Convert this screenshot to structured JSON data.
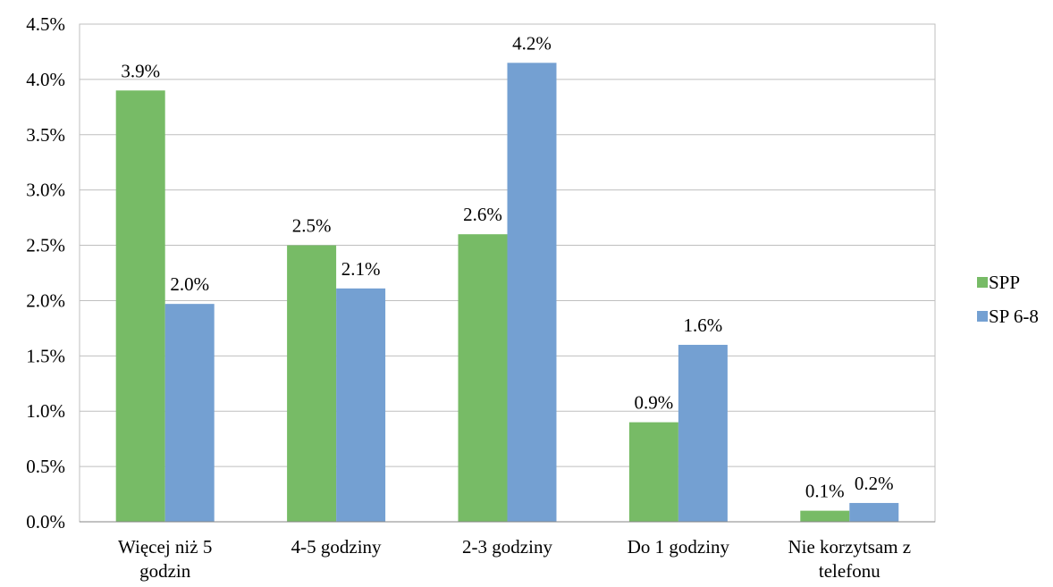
{
  "chart_data": {
    "type": "bar",
    "title": "",
    "xlabel": "",
    "ylabel": "",
    "categories": [
      [
        "Więcej niż 5",
        "godzin"
      ],
      [
        "4-5 godziny"
      ],
      [
        "2-3 godziny"
      ],
      [
        "Do 1 godziny"
      ],
      [
        "Nie korzytsam z",
        "telefonu"
      ]
    ],
    "series": [
      {
        "name": "SPP",
        "color": "#77BB66",
        "values": [
          3.9,
          2.5,
          2.6,
          0.9,
          0.1
        ],
        "labels": [
          "3.9%",
          "2.5%",
          "2.6%",
          "0.9%",
          "0.1%"
        ]
      },
      {
        "name": "SP 6-8",
        "color": "#74A0D2",
        "values": [
          1.97,
          2.11,
          4.15,
          1.6,
          0.17
        ],
        "labels": [
          "2.0%",
          "2.1%",
          "4.2%",
          "1.6%",
          "0.2%"
        ]
      }
    ],
    "ylim": [
      0,
      4.5
    ],
    "yticks": [
      "0.0%",
      "0.5%",
      "1.0%",
      "1.5%",
      "2.0%",
      "2.5%",
      "3.0%",
      "3.5%",
      "4.0%",
      "4.5%"
    ],
    "grid": true,
    "legend": "right"
  }
}
